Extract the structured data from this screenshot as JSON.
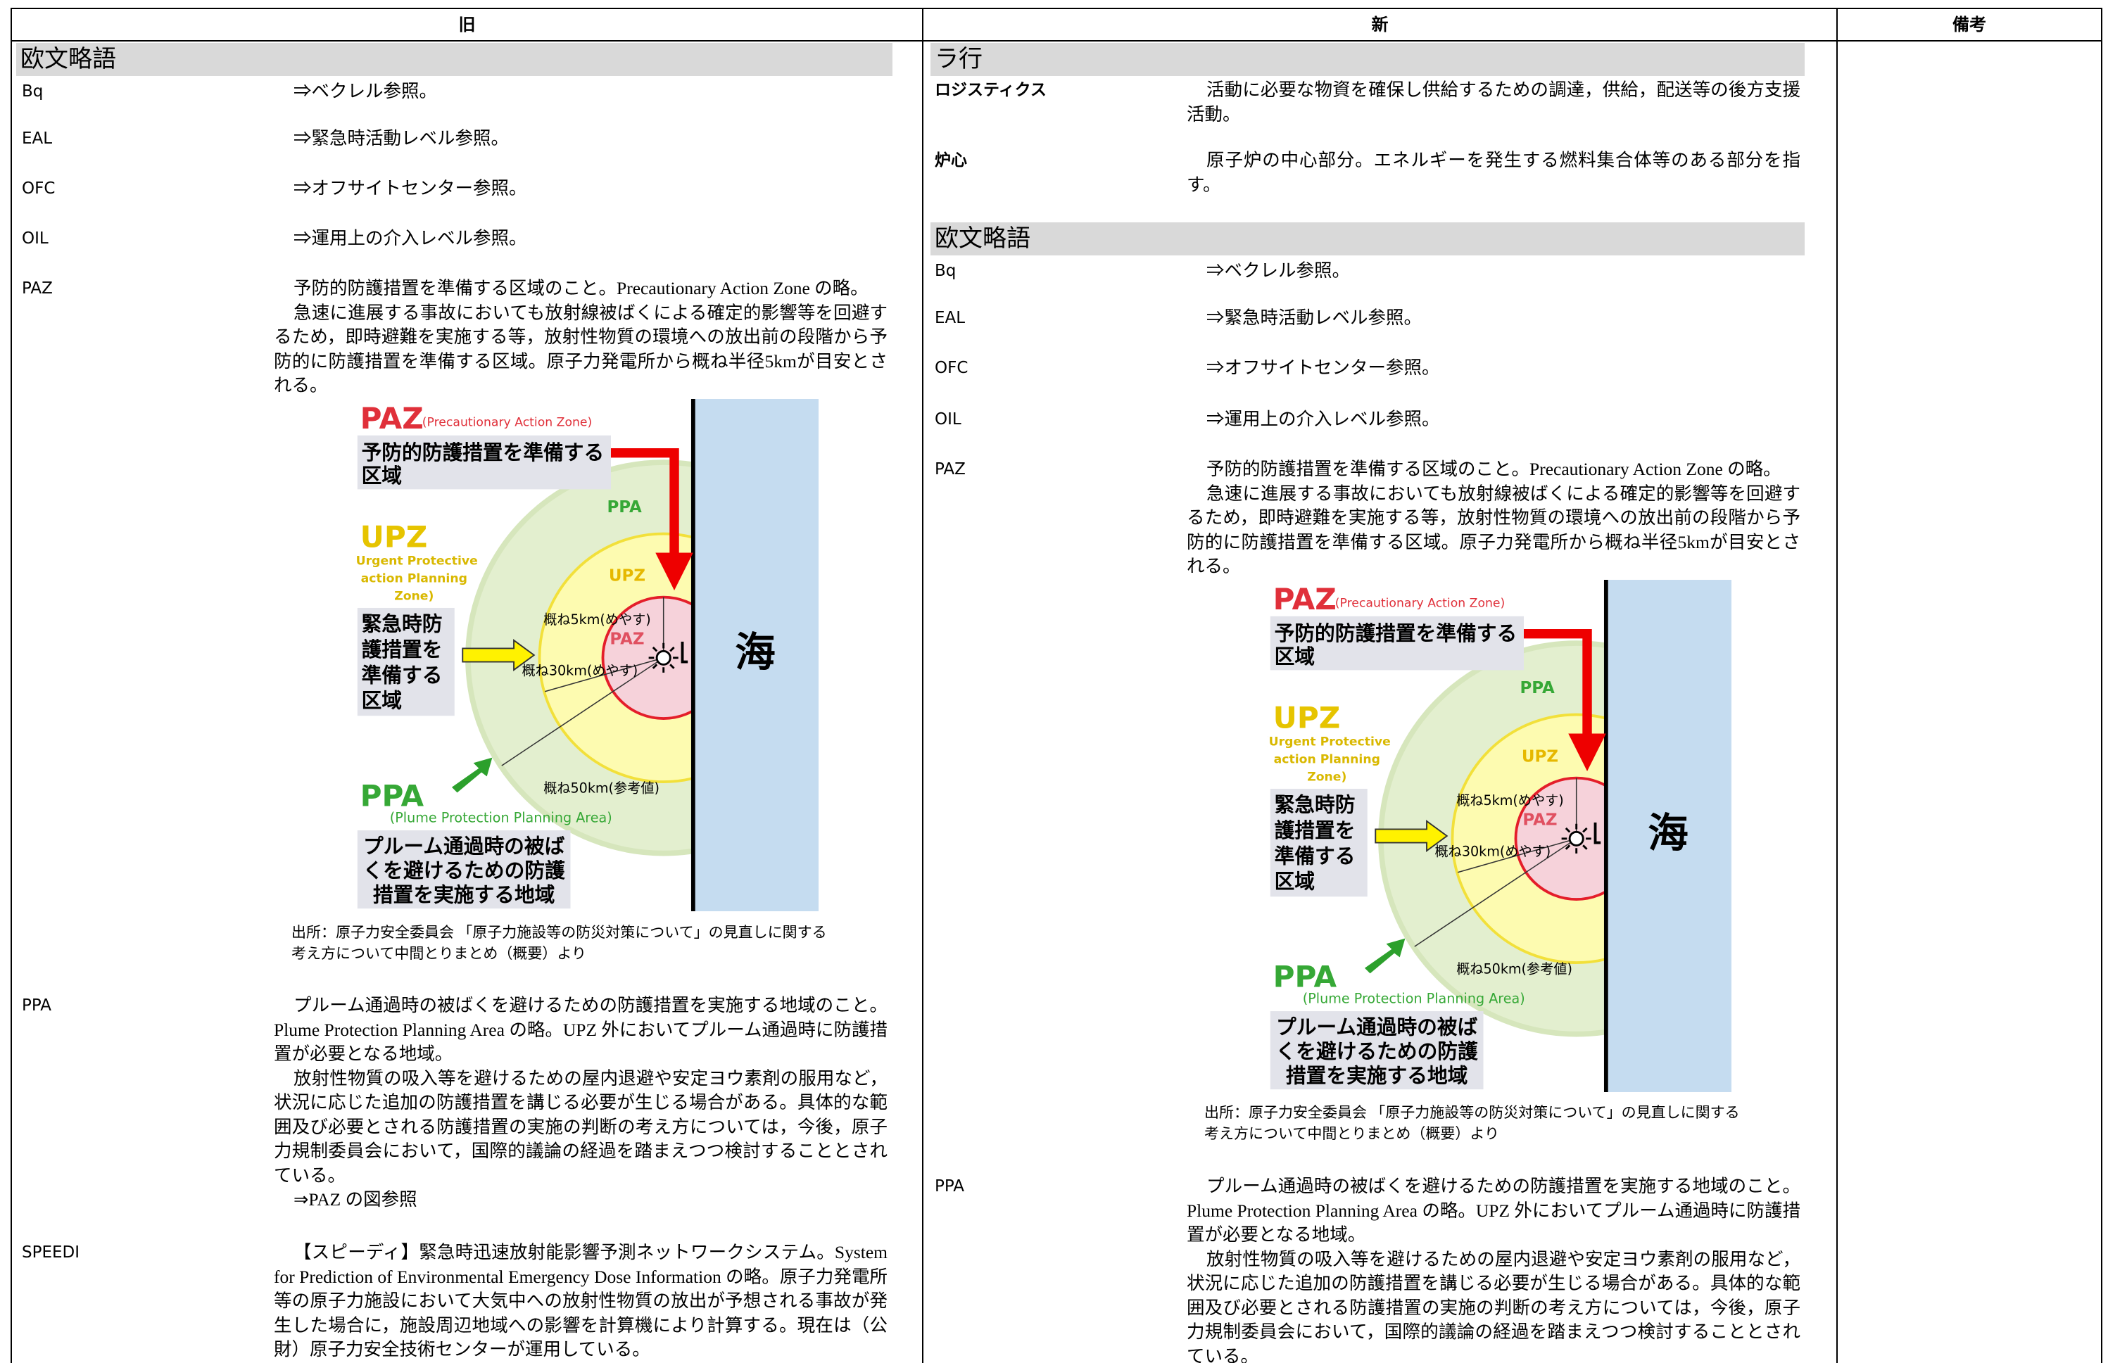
{
  "header": {
    "old": "旧",
    "new": "新",
    "remarks": "備考"
  },
  "old": {
    "heading": "欧文略語",
    "entries": [
      {
        "term": "Bq",
        "desc": [
          "⇒ベクレル参照。"
        ]
      },
      {
        "term": "EAL",
        "desc": [
          "⇒緊急時活動レベル参照。"
        ]
      },
      {
        "term": "OFC",
        "desc": [
          "⇒オフサイトセンター参照。"
        ]
      },
      {
        "term": "OIL",
        "desc": [
          "⇒運用上の介入レベル参照。"
        ]
      },
      {
        "term": "PAZ",
        "desc": [
          "予防的防護措置を準備する区域のこと。Precautionary Action Zone の略。",
          "急速に進展する事故においても放射線被ばくによる確定的影響等を回避するため，即時避難を実施する等，放射性物質の環境への放出前の段階から予防的に防護措置を準備する区域。原子力発電所から概ね半径5kmが目安とされる。"
        ]
      },
      {
        "term": "PPA",
        "desc": [
          "プルーム通過時の被ばくを避けるための防護措置を実施する地域のこと。Plume Protection Planning Area の略。UPZ 外においてプルーム通過時に防護措置が必要となる地域。",
          "放射性物質の吸入等を避けるための屋内退避や安定ヨウ素剤の服用など，状況に応じた追加の防護措置を講じる必要が生じる場合がある。具体的な範囲及び必要とされる防護措置の実施の判断の考え方については，今後，原子力規制委員会において，国際的議論の経過を踏まえつつ検討することとされている。",
          "⇒PAZ の図参照"
        ]
      },
      {
        "term": "SPEEDI",
        "desc": [
          "【スピーディ】緊急時迅速放射能影響予測ネットワークシステム。System for Prediction of Environmental Emergency Dose Information の略。原子力発電所等の原子力施設において大気中への放射性物質の放出が予想される事故が発生した場合に，施設周辺地域への影響を計算機により計算する。現在は（公財）原子力安全技術センターが運用している。"
        ]
      }
    ],
    "figure": {
      "paz": "PAZ",
      "paz_en": "(Precautionary Action Zone)",
      "paz_desc": [
        "予防的防護措置を準備する",
        "区域"
      ],
      "upz": "UPZ",
      "upz_en": [
        "(Urgent Protective",
        "action Planning",
        "Zone)"
      ],
      "upz_desc": [
        "緊急時防",
        "護措置を",
        "準備する",
        "区域"
      ],
      "ppa": "PPA",
      "ppa_en": "(Plume Protection Planning Area)",
      "ppa_desc": [
        "プルーム通過時の被ば",
        "くを避けるための防護",
        "措置を実施する地域"
      ],
      "circle_labels": [
        "PPA",
        "UPZ",
        "PAZ"
      ],
      "radius_labels": [
        "概ね5km(めやす)",
        "概ね30km(めやす)",
        "概ね50km(参考値)"
      ],
      "sea": "海"
    },
    "source": [
      "出所：原子力安全委員会 「原子力施設等の防災対策について」の見直しに関する",
      "考え方について中間とりまとめ（概要）より"
    ]
  },
  "new": {
    "sections": [
      {
        "heading": "ラ行",
        "entries": [
          {
            "term": "ロジスティクス",
            "desc": [
              "活動に必要な物資を確保し供給するための調達，供給，配送等の後方支援活動。"
            ]
          },
          {
            "term": "炉心",
            "desc": [
              "原子炉の中心部分。エネルギーを発生する燃料集合体等のある部分を指す。"
            ]
          }
        ]
      },
      {
        "heading": "欧文略語",
        "entries": [
          {
            "term": "Bq",
            "desc": [
              "⇒ベクレル参照。"
            ]
          },
          {
            "term": "EAL",
            "desc": [
              "⇒緊急時活動レベル参照。"
            ]
          },
          {
            "term": "OFC",
            "desc": [
              "⇒オフサイトセンター参照。"
            ]
          },
          {
            "term": "OIL",
            "desc": [
              "⇒運用上の介入レベル参照。"
            ]
          },
          {
            "term": "PAZ",
            "desc": [
              "予防的防護措置を準備する区域のこと。Precautionary Action Zone の略。",
              "急速に進展する事故においても放射線被ばくによる確定的影響等を回避するため，即時避難を実施する等，放射性物質の環境への放出前の段階から予防的に防護措置を準備する区域。原子力発電所から概ね半径5kmが目安とされる。"
            ]
          },
          {
            "term": "PPA",
            "desc": [
              "プルーム通過時の被ばくを避けるための防護措置を実施する地域のこと。Plume Protection Planning Area の略。UPZ 外においてプルーム通過時に防護措置が必要となる地域。",
              "放射性物質の吸入等を避けるための屋内退避や安定ヨウ素剤の服用など，状況に応じた追加の防護措置を講じる必要が生じる場合がある。具体的な範囲及び必要とされる防護措置の実施の判断の考え方については，今後，原子力規制委員会において，国際的議論の経過を踏まえつつ検討することとされている。"
            ]
          }
        ]
      }
    ],
    "figure": {
      "paz": "PAZ",
      "paz_en": "(Precautionary Action Zone)",
      "paz_desc": [
        "予防的防護措置を準備する",
        "区域"
      ],
      "upz": "UPZ",
      "upz_en": [
        "(Urgent Protective",
        "action Planning",
        "Zone)"
      ],
      "upz_desc": [
        "緊急時防",
        "護措置を",
        "準備する",
        "区域"
      ],
      "ppa": "PPA",
      "ppa_en": "(Plume Protection Planning Area)",
      "ppa_desc": [
        "プルーム通過時の被ば",
        "くを避けるための防護",
        "措置を実施する地域"
      ],
      "circle_labels": [
        "PPA",
        "UPZ",
        "PAZ"
      ],
      "radius_labels": [
        "概ね5km(めやす)",
        "概ね30km(めやす)",
        "概ね50km(参考値)"
      ],
      "sea": "海"
    },
    "source": [
      "出所：原子力安全委員会 「原子力施設等の防災対策について」の見直しに関する",
      "考え方について中間とりまとめ（概要）より"
    ]
  }
}
